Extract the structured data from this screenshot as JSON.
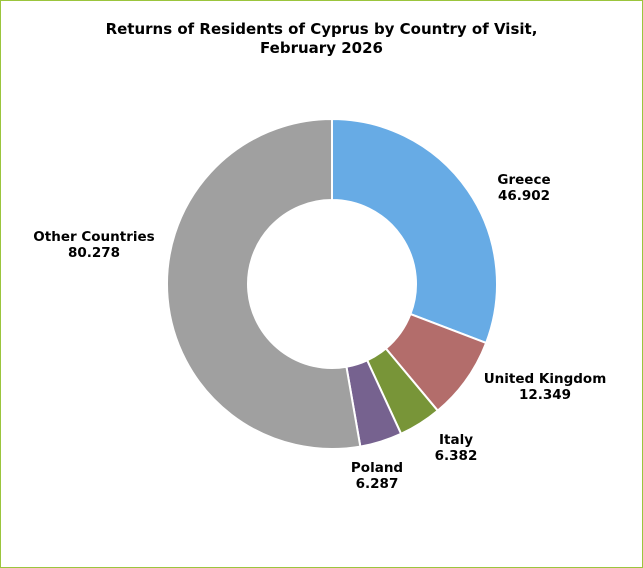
{
  "chart_data": {
    "type": "pie",
    "variant": "doughnut",
    "title_lines": [
      "Returns of Residents of Cyprus by Country of Visit,",
      "February 2026"
    ],
    "slices": [
      {
        "name": "Greece",
        "label": "46.902",
        "value": 46.902,
        "color": "#67abe5"
      },
      {
        "name": "United Kingdom",
        "label": "12.349",
        "value": 12.349,
        "color": "#b36d6b"
      },
      {
        "name": "Italy",
        "label": "6.382",
        "value": 6.382,
        "color": "#789538"
      },
      {
        "name": "Poland",
        "label": "6.287",
        "value": 6.287,
        "color": "#76628f"
      },
      {
        "name": "Other Countries",
        "label": "80.278",
        "value": 80.278,
        "color": "#a0a0a0"
      }
    ],
    "legend": "none",
    "data_labels": "outside"
  }
}
